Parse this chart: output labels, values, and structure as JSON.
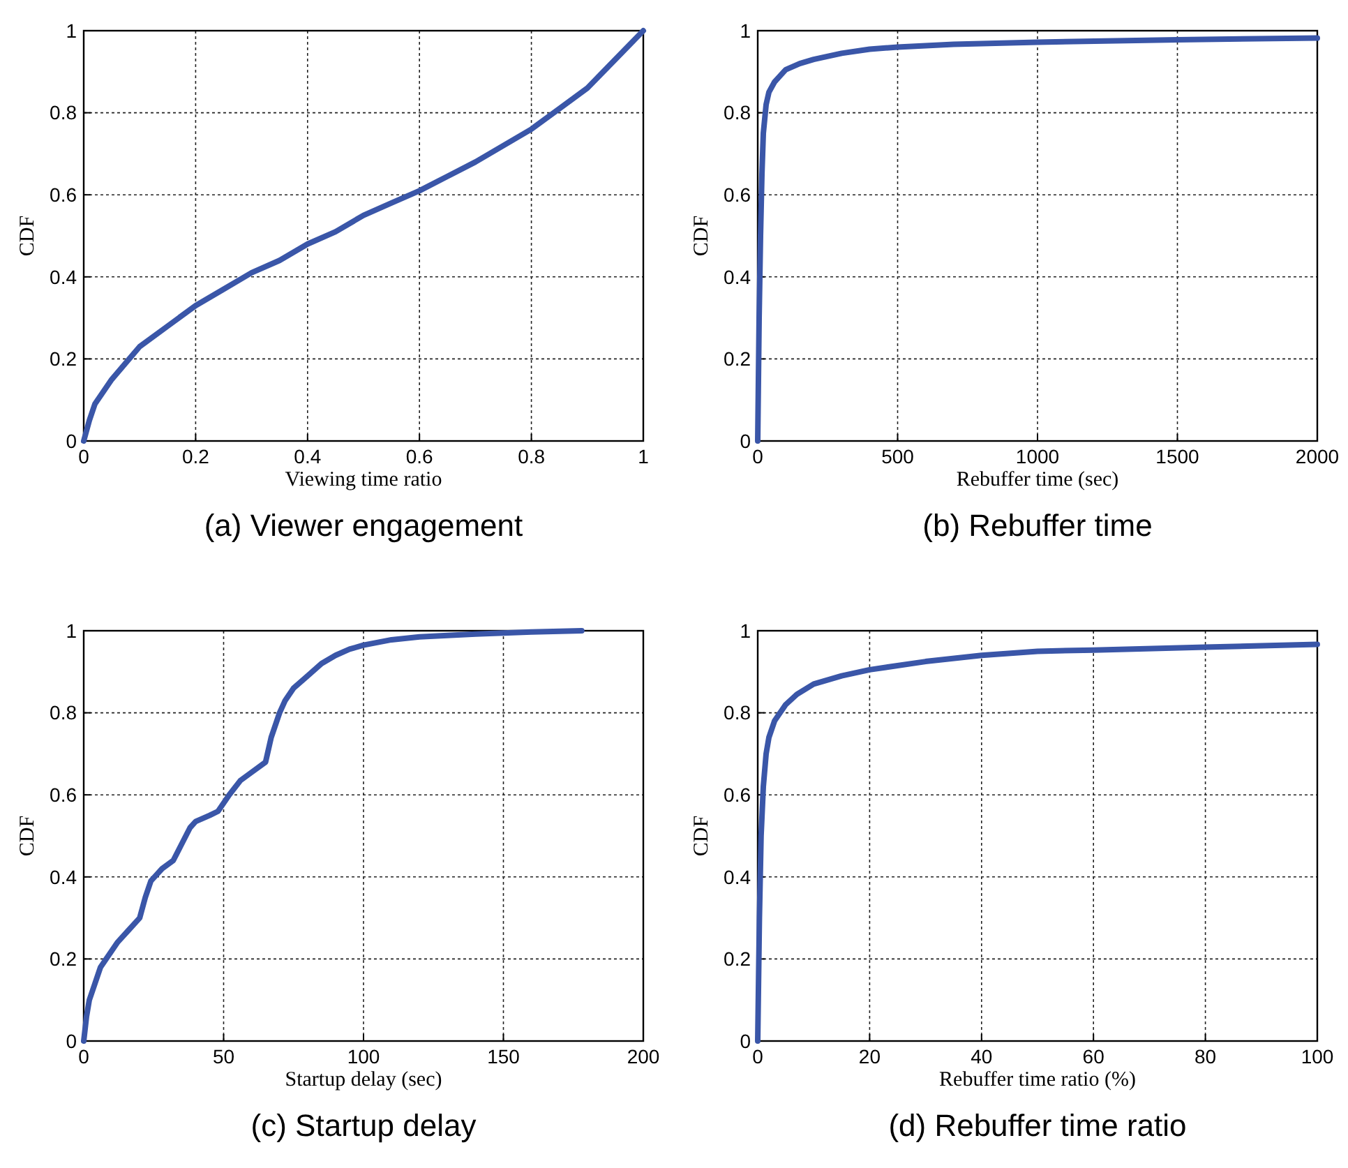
{
  "chart_data": [
    {
      "type": "line",
      "title": "(a) Viewer engagement",
      "xlabel": "Viewing time ratio",
      "ylabel": "CDF",
      "xlim": [
        0,
        1
      ],
      "ylim": [
        0,
        1
      ],
      "xticks": [
        0,
        0.2,
        0.4,
        0.6,
        0.8,
        1
      ],
      "yticks": [
        0,
        0.2,
        0.4,
        0.6,
        0.8,
        1
      ],
      "grid": true,
      "series": [
        {
          "color": "#3a56a8",
          "x": [
            0,
            0.01,
            0.02,
            0.05,
            0.1,
            0.15,
            0.2,
            0.25,
            0.3,
            0.35,
            0.4,
            0.45,
            0.5,
            0.55,
            0.6,
            0.65,
            0.7,
            0.75,
            0.8,
            0.85,
            0.9,
            0.95,
            1
          ],
          "values": [
            0,
            0.05,
            0.09,
            0.15,
            0.23,
            0.28,
            0.33,
            0.37,
            0.41,
            0.44,
            0.48,
            0.51,
            0.55,
            0.58,
            0.61,
            0.645,
            0.68,
            0.72,
            0.76,
            0.81,
            0.86,
            0.93,
            1
          ]
        }
      ]
    },
    {
      "type": "line",
      "title": "(b) Rebuffer time",
      "xlabel": "Rebuffer time (sec)",
      "ylabel": "CDF",
      "xlim": [
        0,
        2000
      ],
      "ylim": [
        0,
        1
      ],
      "xticks": [
        0,
        500,
        1000,
        1500,
        2000
      ],
      "yticks": [
        0,
        0.2,
        0.4,
        0.6,
        0.8,
        1
      ],
      "grid": true,
      "series": [
        {
          "color": "#3a56a8",
          "x": [
            0,
            5,
            10,
            15,
            20,
            30,
            40,
            60,
            80,
            100,
            150,
            200,
            300,
            400,
            500,
            700,
            1000,
            1500,
            2000
          ],
          "values": [
            0,
            0.3,
            0.5,
            0.65,
            0.75,
            0.82,
            0.85,
            0.875,
            0.89,
            0.905,
            0.92,
            0.93,
            0.945,
            0.955,
            0.96,
            0.967,
            0.972,
            0.978,
            0.982
          ]
        }
      ]
    },
    {
      "type": "line",
      "title": "(c) Startup delay",
      "xlabel": "Startup delay (sec)",
      "ylabel": "CDF",
      "xlim": [
        0,
        200
      ],
      "ylim": [
        0,
        1
      ],
      "xticks": [
        0,
        50,
        100,
        150,
        200
      ],
      "yticks": [
        0,
        0.2,
        0.4,
        0.6,
        0.8,
        1
      ],
      "grid": true,
      "series": [
        {
          "color": "#3a56a8",
          "x": [
            0,
            1,
            2,
            4,
            6,
            8,
            12,
            16,
            20,
            22,
            24,
            28,
            32,
            35,
            38,
            40,
            45,
            48,
            52,
            56,
            60,
            65,
            67,
            70,
            72,
            75,
            80,
            85,
            90,
            95,
            100,
            110,
            120,
            140,
            160,
            178
          ],
          "values": [
            0,
            0.06,
            0.1,
            0.14,
            0.18,
            0.2,
            0.24,
            0.27,
            0.3,
            0.35,
            0.39,
            0.42,
            0.44,
            0.48,
            0.52,
            0.535,
            0.55,
            0.56,
            0.6,
            0.635,
            0.655,
            0.68,
            0.74,
            0.8,
            0.83,
            0.86,
            0.89,
            0.92,
            0.94,
            0.955,
            0.965,
            0.978,
            0.985,
            0.992,
            0.997,
            1
          ]
        }
      ]
    },
    {
      "type": "line",
      "title": "(d) Rebuffer time ratio",
      "xlabel": "Rebuffer time ratio (%)",
      "ylabel": "CDF",
      "xlim": [
        0,
        100
      ],
      "ylim": [
        0,
        1
      ],
      "xticks": [
        0,
        20,
        40,
        60,
        80,
        100
      ],
      "yticks": [
        0,
        0.2,
        0.4,
        0.6,
        0.8,
        1
      ],
      "grid": true,
      "series": [
        {
          "color": "#3a56a8",
          "x": [
            0,
            0.3,
            0.6,
            1,
            1.5,
            2,
            3,
            4,
            5,
            7,
            10,
            15,
            20,
            30,
            40,
            50,
            60,
            80,
            100
          ],
          "values": [
            0,
            0.3,
            0.5,
            0.62,
            0.7,
            0.74,
            0.78,
            0.8,
            0.82,
            0.845,
            0.87,
            0.89,
            0.905,
            0.925,
            0.94,
            0.95,
            0.953,
            0.96,
            0.967
          ]
        }
      ]
    }
  ]
}
